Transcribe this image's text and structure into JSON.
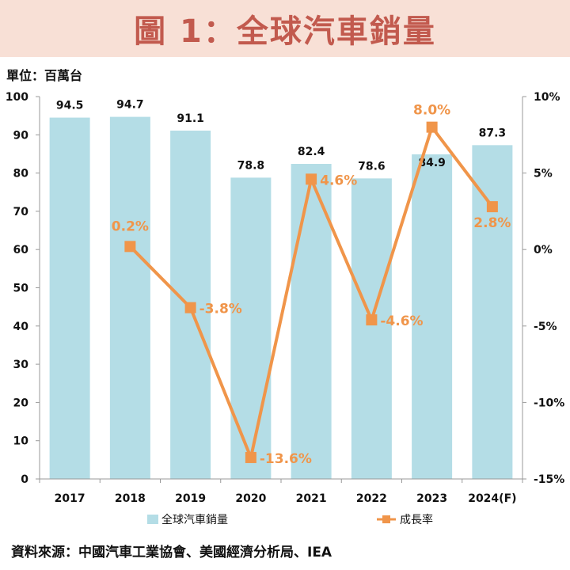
{
  "header": {
    "title": "圖 1：全球汽車銷量"
  },
  "unit": "單位：百萬台",
  "source": "資料來源：中國汽車工業協會、美國經濟分析局、IEA",
  "colors": {
    "bar": "#b4dde6",
    "line": "#f0954a",
    "rate_label": "#f0954a",
    "title": "#c25a4e",
    "banner": "#f8e0d6"
  },
  "chart_data": {
    "type": "bar",
    "categories": [
      "2017",
      "2018",
      "2019",
      "2020",
      "2021",
      "2022",
      "2023",
      "2024(F)"
    ],
    "series": [
      {
        "name": "全球汽車銷量",
        "type": "bar",
        "axis": "left",
        "values": [
          94.5,
          94.7,
          91.1,
          78.8,
          82.4,
          78.6,
          84.9,
          87.3
        ],
        "labels": [
          "94.5",
          "94.7",
          "91.1",
          "78.8",
          "82.4",
          "78.6",
          "84.9",
          "87.3"
        ]
      },
      {
        "name": "成長率",
        "type": "line",
        "axis": "right",
        "values": [
          null,
          0.2,
          -3.8,
          -13.6,
          4.6,
          -4.6,
          8.0,
          2.8
        ],
        "labels": [
          "",
          "0.2%",
          "-3.8%",
          "-13.6%",
          "4.6%",
          "-4.6%",
          "8.0%",
          "2.8%"
        ]
      }
    ],
    "ylim": [
      0,
      100
    ],
    "yticks": [
      "0",
      "10",
      "20",
      "30",
      "40",
      "50",
      "60",
      "70",
      "80",
      "90",
      "100"
    ],
    "y2lim": [
      -15,
      10
    ],
    "y2ticks": [
      "10%",
      "5%",
      "0%",
      "-5%",
      "-10%",
      "-15%"
    ],
    "grid": false,
    "legend": "bottom"
  }
}
